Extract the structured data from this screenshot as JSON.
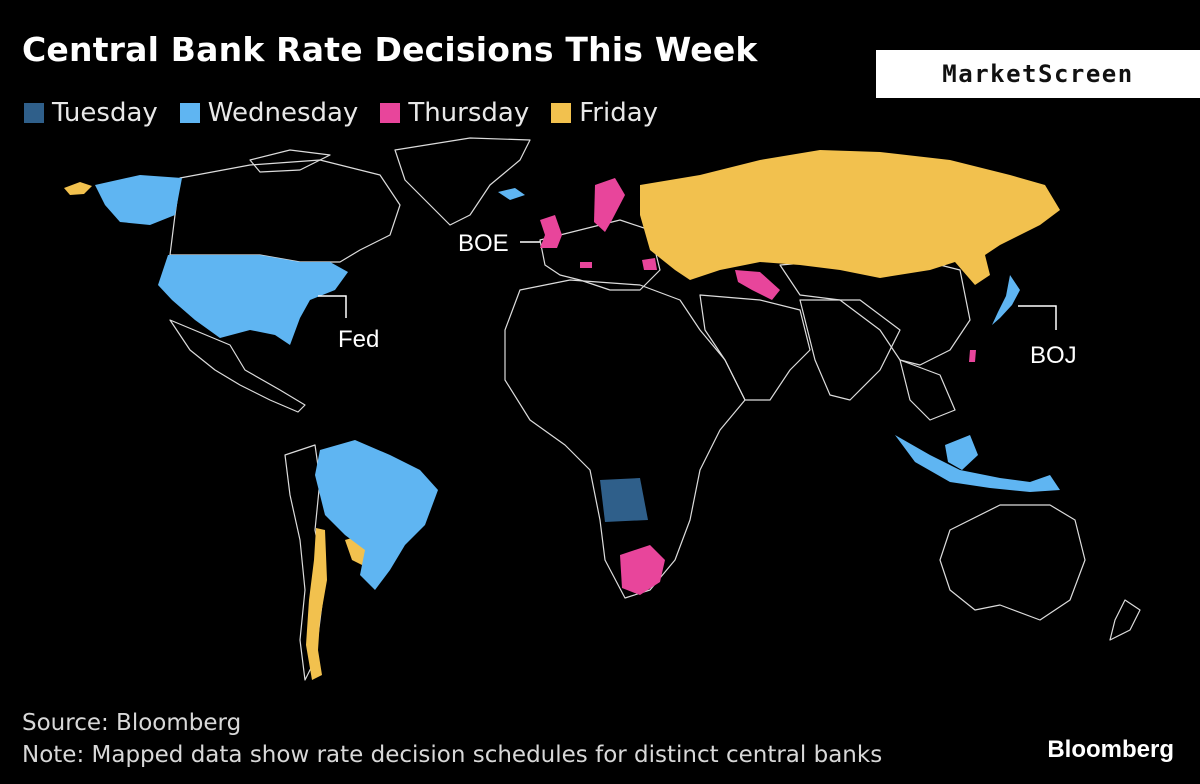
{
  "title": "Central Bank Rate Decisions This Week",
  "brand": "MarketScreen",
  "legend": [
    {
      "label": "Tuesday",
      "color": "#2f5f8a"
    },
    {
      "label": "Wednesday",
      "color": "#5fb5f2"
    },
    {
      "label": "Thursday",
      "color": "#e8459b"
    },
    {
      "label": "Friday",
      "color": "#f2c14e"
    }
  ],
  "annotations": {
    "boe": "BOE",
    "fed": "Fed",
    "boj": "BOJ"
  },
  "source": "Source: Bloomberg",
  "note": "Note: Mapped data show rate decision schedules for distinct central banks",
  "footer_brand": "Bloomberg",
  "colors": {
    "land": "#000000",
    "border": "#dcdcdc"
  }
}
